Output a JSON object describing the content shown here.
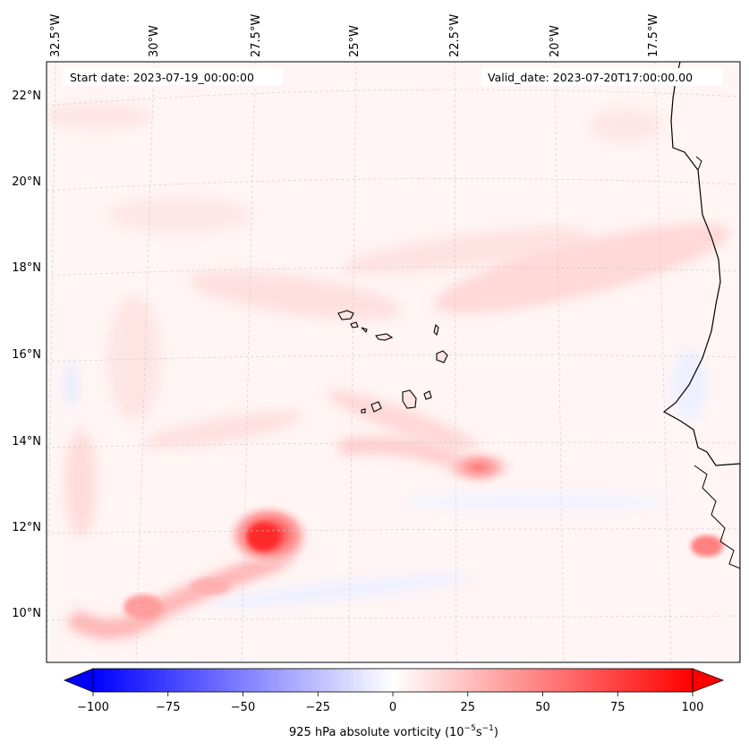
{
  "header": {
    "start_date": "Start date: 2023-07-19_00:00:00",
    "valid_date": "Valid_date: 2023-07-20T17:00:00.00"
  },
  "map": {
    "longitude_labels": [
      "32.5°W",
      "30°W",
      "27.5°W",
      "25°W",
      "22.5°W",
      "20°W",
      "17.5°W"
    ],
    "latitude_labels": [
      "22°N",
      "20°N",
      "18°N",
      "16°N",
      "14°N",
      "12°N",
      "10°N"
    ],
    "features": {
      "vortex_west": {
        "lon": -27.2,
        "lat": 11.8,
        "vorticity": 95
      },
      "vortex_east": {
        "lon": -21.6,
        "lat": 13.5,
        "vorticity": 40
      }
    }
  },
  "colorbar": {
    "label_prefix": "925 hPa absolute vorticity (10",
    "label_exp1": "−5",
    "label_mid": "s",
    "label_exp2": "−1",
    "label_suffix": ")",
    "min": -100,
    "max": 100,
    "ticks": [
      "−100",
      "−75",
      "−50",
      "−25",
      "0",
      "25",
      "50",
      "75",
      "100"
    ],
    "colormap": "bwr",
    "min_color": "#0000ff",
    "mid_color": "#ffffff",
    "max_color": "#ff0000"
  }
}
